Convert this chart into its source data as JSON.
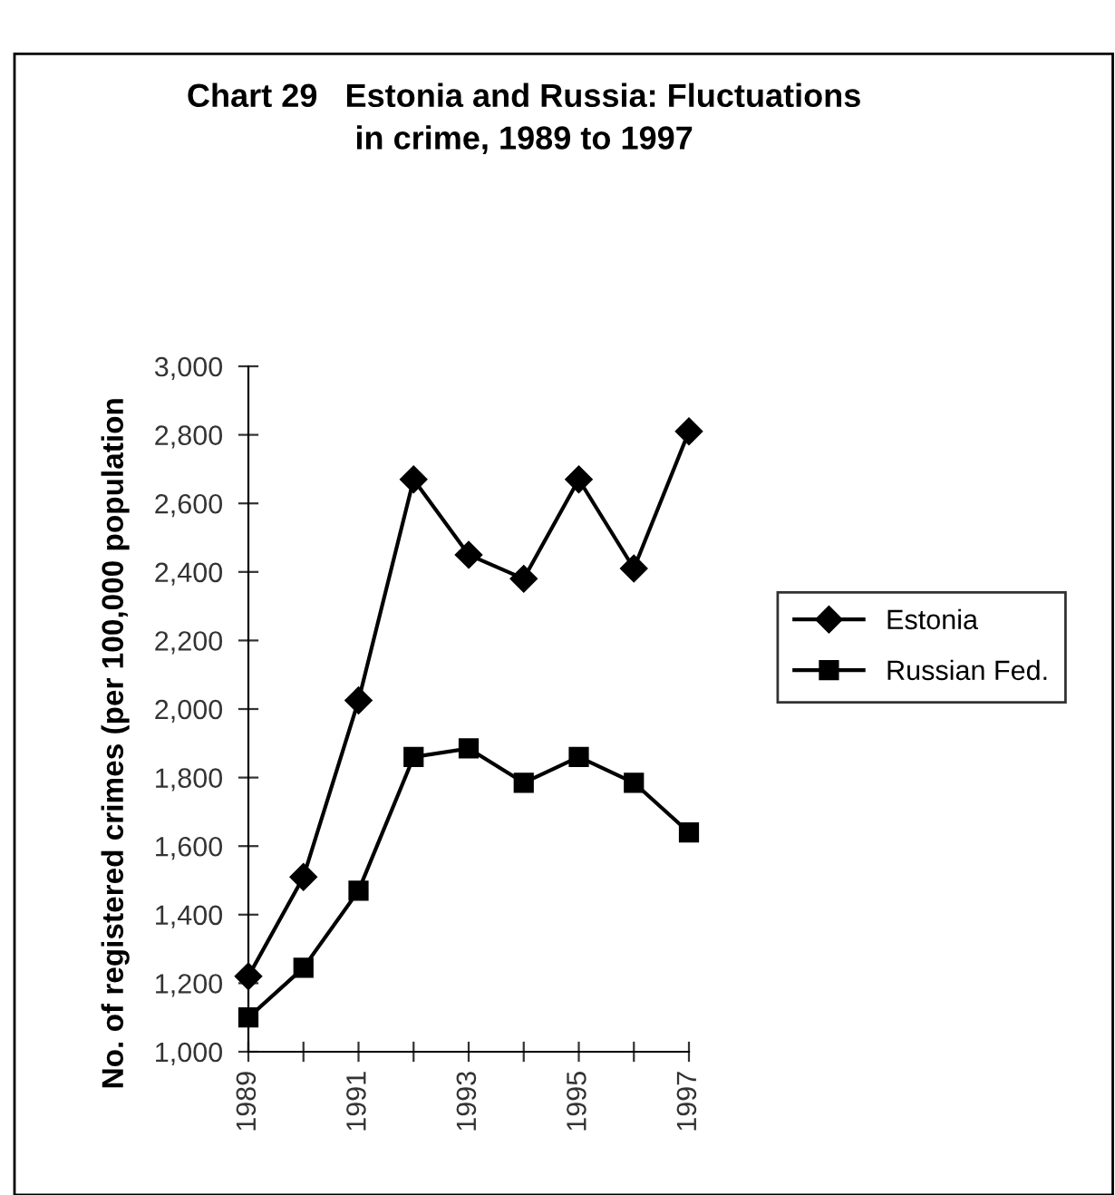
{
  "chart_data": {
    "type": "line",
    "title": "Chart 29   Estonia and Russia: Fluctuations\nin crime, 1989 to 1997",
    "ylabel": "No. of registered crimes (per 100,000 population",
    "categories": [
      "1989",
      null,
      "1991",
      null,
      "1993",
      null,
      "1995",
      null,
      "1997"
    ],
    "series": [
      {
        "name": "Estonia",
        "color": "#000000",
        "marker": "diamond",
        "values": [
          1220,
          1510,
          2025,
          2670,
          2450,
          2380,
          2670,
          2410,
          2810
        ]
      },
      {
        "name": "Russian Fed.",
        "color": "#000000",
        "marker": "square",
        "values": [
          1100,
          1245,
          1470,
          1860,
          1885,
          1785,
          1860,
          1785,
          1640
        ]
      }
    ],
    "ylim": [
      1000,
      3000
    ],
    "yticks": [
      {
        "value": 1000,
        "label": "1,000"
      },
      {
        "value": 1200,
        "label": "1,200"
      },
      {
        "value": 1400,
        "label": "1,400"
      },
      {
        "value": 1600,
        "label": "1,600"
      },
      {
        "value": 1800,
        "label": "1,800"
      },
      {
        "value": 2000,
        "label": "2,000"
      },
      {
        "value": 2200,
        "label": "2,200"
      },
      {
        "value": 2400,
        "label": "2,400"
      },
      {
        "value": 2600,
        "label": "2,600"
      },
      {
        "value": 2800,
        "label": "2,800"
      },
      {
        "value": 3000,
        "label": "3,000"
      }
    ],
    "grid": false,
    "legend": "right",
    "line_style": "solid"
  }
}
